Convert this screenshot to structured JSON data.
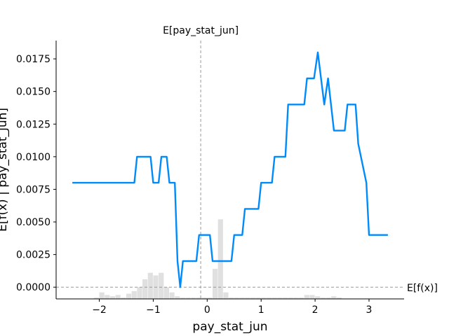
{
  "chart_data": {
    "type": "line",
    "xlabel": "pay_stat_jun",
    "ylabel": "E[f(x) | pay_stat_jun]",
    "top_annotation": "E[pay_stat_jun]",
    "right_annotation": "E[f(x)]",
    "xlim": [
      -2.8,
      3.65
    ],
    "ylim": [
      -0.0009,
      0.0189
    ],
    "x_ticks": [
      -2,
      -1,
      0,
      1,
      2,
      3
    ],
    "x_tick_labels": [
      "−2",
      "−1",
      "0",
      "1",
      "2",
      "3"
    ],
    "y_ticks": [
      0.0,
      0.0025,
      0.005,
      0.0075,
      0.01,
      0.0125,
      0.015,
      0.0175
    ],
    "y_tick_labels": [
      "0.0000",
      "0.0025",
      "0.0050",
      "0.0075",
      "0.0100",
      "0.0125",
      "0.0150",
      "0.0175"
    ],
    "expected_x": -0.12,
    "expected_fx": 0.0,
    "line_color": "#008bfb",
    "hist_color": "#e0e0e0",
    "ref_line_color": "#999999",
    "series": [
      {
        "x": [
          -2.5,
          -1.35,
          -1.3,
          -1.05,
          -1.0,
          -0.9,
          -0.85,
          -0.75,
          -0.7,
          -0.6,
          -0.55,
          -0.5,
          -0.45,
          -0.2,
          -0.15,
          0.05,
          0.1,
          0.45,
          0.5,
          0.65,
          0.7,
          0.95,
          1.0,
          1.2,
          1.25,
          1.45,
          1.5,
          1.8,
          1.85,
          1.98,
          2.05,
          2.17,
          2.24,
          2.35,
          2.4,
          2.55,
          2.6,
          2.75,
          2.8,
          2.95,
          3.0,
          3.35
        ],
        "y": [
          0.008,
          0.008,
          0.01,
          0.01,
          0.008,
          0.008,
          0.01,
          0.01,
          0.008,
          0.008,
          0.002,
          0.0,
          0.002,
          0.002,
          0.004,
          0.004,
          0.002,
          0.002,
          0.004,
          0.004,
          0.006,
          0.006,
          0.008,
          0.008,
          0.01,
          0.01,
          0.014,
          0.014,
          0.016,
          0.016,
          0.018,
          0.014,
          0.016,
          0.012,
          0.012,
          0.012,
          0.014,
          0.014,
          0.011,
          0.008,
          0.004,
          0.004
        ]
      }
    ],
    "histogram": {
      "bin_edges": [
        -2.6,
        -2.5,
        -2.4,
        -2.3,
        -2.2,
        -2.1,
        -2.0,
        -1.9,
        -1.8,
        -1.7,
        -1.6,
        -1.5,
        -1.4,
        -1.3,
        -1.2,
        -1.1,
        -1.0,
        -0.9,
        -0.8,
        -0.7,
        -0.6,
        -0.5,
        -0.4,
        -0.3,
        -0.2,
        -0.1,
        0.0,
        0.1,
        0.2,
        0.3,
        0.4,
        0.5,
        0.6,
        0.7,
        0.8,
        0.9,
        1.0,
        1.1,
        1.2,
        1.3,
        1.4,
        1.5,
        1.6,
        1.7,
        1.8,
        1.9,
        2.0,
        2.1,
        2.2,
        2.3,
        2.4,
        2.5,
        2.6,
        2.7,
        2.8,
        2.9,
        3.0,
        3.1,
        3.2,
        3.3
      ],
      "values": [
        0,
        0,
        0,
        0,
        0,
        0.0001,
        0.0005,
        0.0003,
        0.0002,
        0.0003,
        0.0001,
        0.0004,
        0.0006,
        0.0009,
        0.0015,
        0.002,
        0.0018,
        0.002,
        0.0009,
        0.0005,
        0.0002,
        0.0001,
        0.0001,
        0.0001,
        0.0001,
        0.0001,
        0.0001,
        0.0023,
        0.0061,
        0.0005,
        0.0001,
        0.0001,
        0.0001,
        0.0001,
        0.0001,
        0.0001,
        0.0001,
        0.0001,
        0.0001,
        0.0001,
        0.0001,
        0.0001,
        0.0001,
        0.0001,
        0.0003,
        0.0003,
        0.0002,
        0.0001,
        0.0001,
        0.0002,
        0.0001,
        0,
        0,
        0,
        0,
        0,
        0,
        0,
        0
      ]
    }
  }
}
